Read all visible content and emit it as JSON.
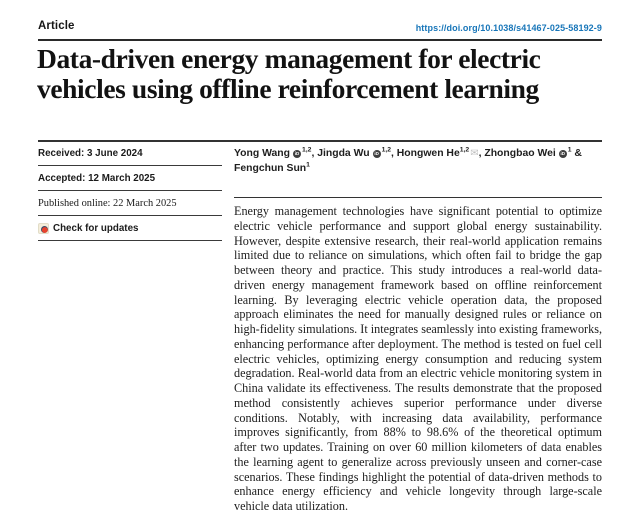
{
  "header": {
    "article_label": "Article",
    "doi": "https://doi.org/10.1038/s41467-025-58192-9"
  },
  "title": "Data-driven energy management for electric vehicles using offline reinforcement learning",
  "meta": {
    "rows": [
      {
        "text": "Received: 3 June 2024"
      },
      {
        "text": "Accepted: 12 March 2025"
      },
      {
        "text": "Published online: 22 March 2025"
      }
    ],
    "check_label": "Check for updates"
  },
  "authors": {
    "list": [
      {
        "name": "Yong Wang",
        "orcid": true,
        "sup": "1,2",
        "email": false,
        "sep": ", "
      },
      {
        "name": "Jingda Wu",
        "orcid": true,
        "sup": "1,2",
        "email": false,
        "sep": ", "
      },
      {
        "name": "Hongwen He",
        "orcid": false,
        "sup": "1,2",
        "email": true,
        "sep": ", "
      },
      {
        "name": "Zhongbao Wei",
        "orcid": true,
        "sup": "1",
        "email": false,
        "sep": " & "
      },
      {
        "name": "Fengchun Sun",
        "orcid": false,
        "sup": "1",
        "email": false,
        "sep": ""
      }
    ]
  },
  "abstract": {
    "text": "Energy management technologies have significant potential to optimize electric vehicle performance and support global energy sustainability. However, despite extensive research, their real-world application remains limited due to reliance on simulations, which often fail to bridge the gap between theory and practice. This study introduces a real-world data-driven energy management framework based on offline reinforcement learning. By leveraging electric vehicle operation data, the proposed approach eliminates the need for manually designed rules or reliance on high-fidelity simulations. It integrates seamlessly into existing frameworks, enhancing performance after deployment. The method is tested on fuel cell electric vehicles, optimizing energy consumption and reducing system degradation. Real-world data from an electric vehicle monitoring system in China validate its effectiveness. The results demonstrate that the proposed method consistently achieves superior performance under diverse conditions. Notably, with increasing data availability, performance improves significantly, from 88% to 98.6% of the theoretical optimum after two updates. Training on over 60 million kilometers of data enables the learning agent to generalize across previously unseen and corner-case scenarios. These findings highlight the potential of data-driven methods to enhance energy efficiency and vehicle longevity through large-scale vehicle data utilization."
  },
  "icons": {
    "envelope_glyph": "✉",
    "orcid_glyph": "iD",
    "crossmark": "crossmark-icon"
  },
  "colors": {
    "doi_link_blue": "#1876b9",
    "rule_dark": "#2a2a2a",
    "body_text": "#1d1d1d",
    "crossmark_red": "#e8432d",
    "crossmark_navy": "#3c4a67",
    "crossmark_bg": "#f5eedb",
    "envelope_gray": "#bfbfbf"
  }
}
